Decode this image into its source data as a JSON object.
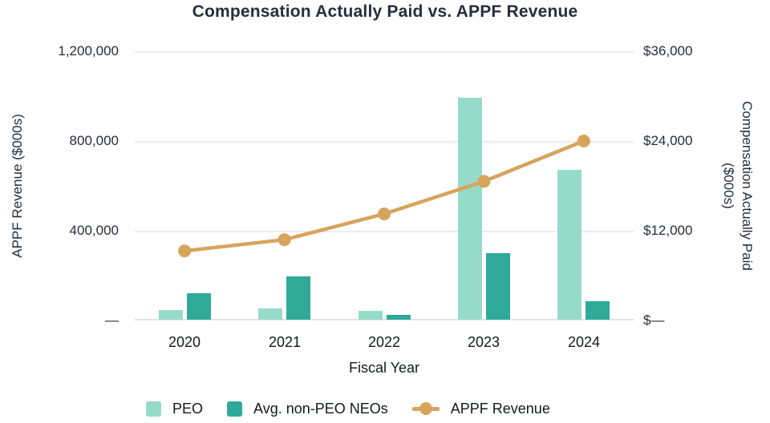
{
  "title": "Compensation Actually Paid vs. APPF Revenue",
  "axes": {
    "left": {
      "title": "APPF Revenue ($000s)",
      "ticks": [
        "1,200,000",
        "800,000",
        "400,000",
        "—"
      ]
    },
    "right": {
      "title_line1": "Compensation Actually Paid",
      "title_line2": "($000s)",
      "ticks": [
        "$36,000",
        "$24,000",
        "$12,000",
        "$—"
      ]
    },
    "x": {
      "title": "Fiscal Year"
    }
  },
  "legend": [
    {
      "label": "PEO",
      "swatch": "square",
      "color": "#96dbc9"
    },
    {
      "label": "Avg. non-PEO NEOs",
      "swatch": "square",
      "color": "#2faa99"
    },
    {
      "label": "APPF Revenue",
      "swatch": "line-dot",
      "color": "#d7a45c"
    }
  ],
  "colors": {
    "peo_bar": "#96dbc9",
    "non_peo_bar": "#2faa99",
    "revenue_line": "#d7a45c",
    "gridline": "#ececec",
    "text_dark": "#262d3a"
  },
  "chart_data": {
    "type": "bar",
    "subtype": "combo-bar-line-dual-axis",
    "title": "Compensation Actually Paid vs. APPF Revenue",
    "categories": [
      "2020",
      "2021",
      "2022",
      "2023",
      "2024"
    ],
    "series": [
      {
        "name": "PEO",
        "type": "bar",
        "axis": "right",
        "color": "#96dbc9",
        "values": [
          1300,
          1500,
          1150,
          29700,
          20000
        ]
      },
      {
        "name": "Avg. non-PEO NEOs",
        "type": "bar",
        "axis": "right",
        "color": "#2faa99",
        "values": [
          3500,
          5800,
          600,
          8900,
          2450
        ]
      },
      {
        "name": "APPF Revenue",
        "type": "line",
        "axis": "left",
        "color": "#d7a45c",
        "values": [
          310000,
          360000,
          475000,
          620000,
          800000
        ]
      }
    ],
    "xlabel": "Fiscal Year",
    "left_ylabel": "APPF Revenue ($000s)",
    "right_ylabel": "Compensation Actually Paid ($000s)",
    "left_ylim": [
      0,
      1200000
    ],
    "right_ylim": [
      0,
      36000
    ],
    "left_tick_values": [
      1200000,
      800000,
      400000,
      0
    ],
    "right_tick_values": [
      36000,
      24000,
      12000,
      0
    ],
    "grid": true,
    "legend_position": "bottom"
  }
}
